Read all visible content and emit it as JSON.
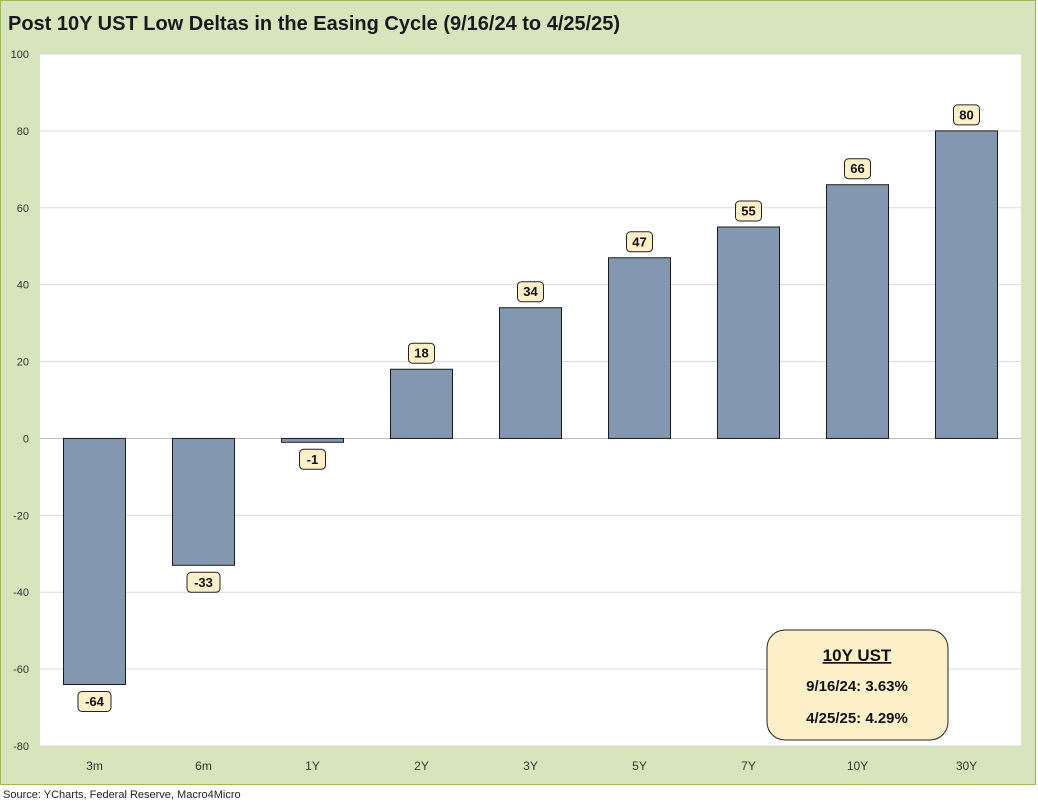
{
  "title": "Post 10Y UST Low Deltas in the Easing Cycle (9/16/24 to 4/25/25)",
  "source": "Source: YCharts, Federal Reserve, Macro4Micro",
  "colors": {
    "frame": "#d8e4bc",
    "plot_bg": "#ffffff",
    "bar": "#8497b0",
    "label_bg": "#fdf0c8",
    "callout_bg": "#fdf0c8"
  },
  "callout": {
    "heading": "10Y UST",
    "line1": "9/16/24: 3.63%",
    "line2": "4/25/25: 4.29%"
  },
  "chart_data": {
    "type": "bar",
    "title": "Post 10Y UST Low Deltas in the Easing Cycle (9/16/24 to 4/25/25)",
    "categories": [
      "3m",
      "6m",
      "1Y",
      "2Y",
      "3Y",
      "5Y",
      "7Y",
      "10Y",
      "30Y"
    ],
    "values": [
      -64,
      -33,
      -1,
      18,
      34,
      47,
      55,
      66,
      80
    ],
    "ylim": [
      -80,
      100
    ],
    "yticks": [
      100,
      80,
      60,
      40,
      20,
      0,
      -20,
      -40,
      -60,
      -80
    ],
    "grid": true,
    "data_labels": true,
    "legend": "none"
  }
}
